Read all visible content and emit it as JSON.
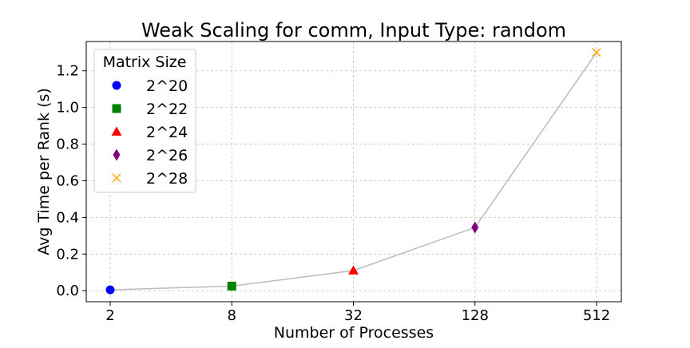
{
  "chart_data": {
    "type": "line",
    "title": "Weak Scaling for comm, Input Type: random",
    "xlabel": "Number of Processes",
    "ylabel": "Avg Time per Rank (s)",
    "x_scale": "log2",
    "x_ticks": [
      "2",
      "8",
      "32",
      "128",
      "512"
    ],
    "y_ticks": [
      "0.0",
      "0.2",
      "0.4",
      "0.6",
      "0.8",
      "1.0",
      "1.2"
    ],
    "ylim": [
      -0.06,
      1.36
    ],
    "grid": true,
    "legend_title": "Matrix Size",
    "legend_position": "top-left",
    "line_color": "#bbbbbb",
    "points": [
      {
        "x": 2,
        "y": 0.005,
        "label": "2^20",
        "marker": "circle",
        "color": "#0000ff"
      },
      {
        "x": 8,
        "y": 0.025,
        "label": "2^22",
        "marker": "square",
        "color": "#008000"
      },
      {
        "x": 32,
        "y": 0.11,
        "label": "2^24",
        "marker": "triangle",
        "color": "#ff0000"
      },
      {
        "x": 128,
        "y": 0.345,
        "label": "2^26",
        "marker": "diamond",
        "color": "#800080"
      },
      {
        "x": 512,
        "y": 1.3,
        "label": "2^28",
        "marker": "x",
        "color": "#ffa500"
      }
    ]
  }
}
